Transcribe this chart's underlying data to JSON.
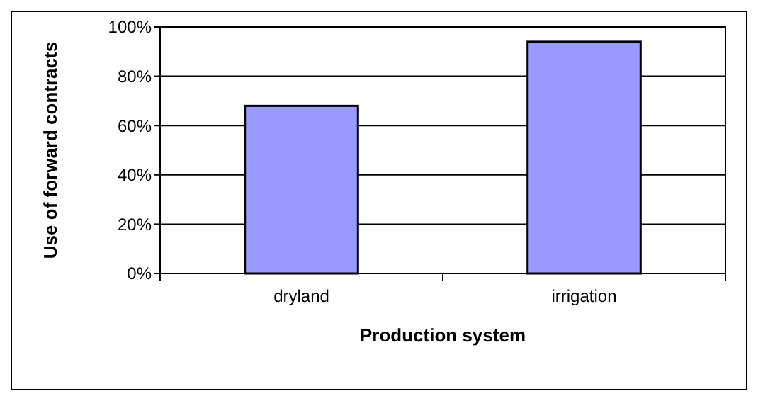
{
  "chart_data": {
    "type": "bar",
    "xlabel": "Production system",
    "ylabel": "Use of forward contracts",
    "categories": [
      "dryland",
      "irrigation"
    ],
    "values": [
      68,
      94
    ],
    "color": "#9999ff",
    "ylim": [
      0,
      100
    ],
    "yticks": [
      {
        "value": 0,
        "label": "0%"
      },
      {
        "value": 20,
        "label": "20%"
      },
      {
        "value": 40,
        "label": "40%"
      },
      {
        "value": 60,
        "label": "60%"
      },
      {
        "value": 80,
        "label": "80%"
      },
      {
        "value": 100,
        "label": "100%"
      }
    ],
    "grid": "y"
  }
}
